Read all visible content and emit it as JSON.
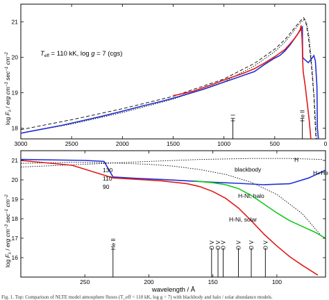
{
  "caption": "Fig. 1. Top: Comparison of NLTE model atmosphere fluxes (T_eff = 110 kK, log g = 7) with blackbody and halo / solar abundance models.",
  "chart_data": [
    {
      "type": "line",
      "panel": "top",
      "annotation": "T_eff = 110 kK, log g = 7 (cgs)",
      "annotation_parts": {
        "pre": "T",
        "sub": "eff",
        "mid": " = 110 kK, log ",
        "g": "g",
        "post": " = 7 (cgs)"
      },
      "ylabel": "log F_λ / erg cm⁻³ sec⁻¹ cm⁻²",
      "ylabel_parts": {
        "a": "log ",
        "F": "F",
        "lam": "λ",
        "b": " / ",
        "unit": "erg cm",
        "e1": "−3",
        "c": " sec",
        "e2": "−1",
        "d": " cm",
        "e3": "−2"
      },
      "xlim": [
        3000,
        0
      ],
      "ylim": [
        17.7,
        21.5
      ],
      "x_ticks": [
        3000,
        2500,
        2000,
        1500,
        1000,
        500,
        0
      ],
      "y_ticks": [
        18,
        19,
        20,
        21
      ],
      "line_ids": [
        {
          "label": "H I",
          "x": 912
        },
        {
          "label": "He II",
          "x": 228
        }
      ],
      "series": [
        {
          "color": "#1f2fd6",
          "points": [
            [
              3000,
              17.86
            ],
            [
              2800,
              17.97
            ],
            [
              2600,
              18.08
            ],
            [
              2400,
              18.21
            ],
            [
              2200,
              18.34
            ],
            [
              2000,
              18.48
            ],
            [
              1800,
              18.63
            ],
            [
              1600,
              18.77
            ],
            [
              1400,
              18.93
            ],
            [
              1200,
              19.1
            ],
            [
              1000,
              19.3
            ],
            [
              900,
              19.4
            ],
            [
              800,
              19.5
            ],
            [
              700,
              19.6
            ],
            [
              600,
              19.8
            ],
            [
              500,
              19.98
            ],
            [
              450,
              20.05
            ],
            [
              400,
              20.18
            ],
            [
              350,
              20.35
            ],
            [
              300,
              20.55
            ],
            [
              260,
              20.72
            ],
            [
              235,
              20.82
            ],
            [
              228,
              20.85
            ],
            [
              225,
              20.0
            ],
            [
              210,
              19.95
            ],
            [
              190,
              19.9
            ],
            [
              170,
              19.85
            ],
            [
              140,
              19.95
            ],
            [
              115,
              20.05
            ],
            [
              100,
              19.9
            ],
            [
              85,
              19.2
            ],
            [
              80,
              18.0
            ],
            [
              70,
              17.7
            ]
          ]
        },
        {
          "color": "#e01818",
          "points": [
            [
              1500,
              18.92
            ],
            [
              1400,
              18.98
            ],
            [
              1300,
              19.05
            ],
            [
              1200,
              19.15
            ],
            [
              1100,
              19.25
            ],
            [
              1000,
              19.36
            ],
            [
              900,
              19.46
            ],
            [
              800,
              19.56
            ],
            [
              700,
              19.68
            ],
            [
              600,
              19.84
            ],
            [
              500,
              20.02
            ],
            [
              400,
              20.22
            ],
            [
              350,
              20.38
            ],
            [
              300,
              20.55
            ],
            [
              270,
              20.68
            ],
            [
              250,
              20.78
            ],
            [
              240,
              20.9
            ],
            [
              232,
              20.55
            ],
            [
              228,
              20.3
            ],
            [
              225,
              19.9
            ],
            [
              220,
              19.6
            ],
            [
              200,
              19.2
            ],
            [
              180,
              18.7
            ],
            [
              160,
              18.2
            ],
            [
              150,
              17.9
            ],
            [
              145,
              17.7
            ]
          ]
        }
      ],
      "blackbody_curves": [
        {
          "dash": "long",
          "points": [
            [
              3000,
              17.96
            ],
            [
              2500,
              18.24
            ],
            [
              2000,
              18.55
            ],
            [
              1500,
              18.9
            ],
            [
              1000,
              19.39
            ],
            [
              700,
              19.83
            ],
            [
              500,
              20.23
            ],
            [
              400,
              20.5
            ],
            [
              300,
              20.85
            ],
            [
              250,
              21.02
            ],
            [
              215,
              21.12
            ],
            [
              195,
              21.0
            ],
            [
              170,
              20.6
            ],
            [
              140,
              19.8
            ],
            [
              115,
              18.9
            ],
            [
              95,
              17.7
            ]
          ]
        },
        {
          "dash": "short",
          "points": [
            [
              3000,
              17.86
            ],
            [
              2500,
              18.12
            ],
            [
              2000,
              18.44
            ],
            [
              1500,
              18.82
            ],
            [
              1000,
              19.31
            ],
            [
              700,
              19.76
            ],
            [
              500,
              20.16
            ],
            [
              400,
              20.43
            ],
            [
              300,
              20.79
            ],
            [
              250,
              20.97
            ],
            [
              205,
              21.08
            ],
            [
              185,
              20.95
            ],
            [
              160,
              20.55
            ],
            [
              130,
              19.6
            ],
            [
              105,
              18.6
            ],
            [
              88,
              17.7
            ]
          ]
        }
      ]
    },
    {
      "type": "line",
      "panel": "bottom",
      "xlabel": "wavelength / Å",
      "ylabel": "log F_λ / erg cm⁻³ sec⁻¹ cm⁻²",
      "xlim": [
        300,
        62
      ],
      "ylim": [
        15.0,
        21.5
      ],
      "x_ticks": [
        250,
        200,
        150,
        100
      ],
      "y_ticks": [
        16,
        17,
        18,
        19,
        20,
        21
      ],
      "blackbody_temperatures": [
        "130",
        "110",
        "90"
      ],
      "line_ids": [
        {
          "label": "He II",
          "x": 228
        },
        {
          "label": "O V",
          "x": 151
        },
        {
          "label": "O V",
          "x": 146
        },
        {
          "label": "O V",
          "x": 142
        },
        {
          "label": "O V",
          "x": 130
        },
        {
          "label": "O V",
          "x": 120
        },
        {
          "label": "O V",
          "x": 109
        }
      ],
      "series": [
        {
          "name": "blackbody",
          "color": "#000000",
          "dash": "short",
          "points": [
            [
              300,
              20.85
            ],
            [
              260,
              20.9
            ],
            [
              228,
              20.87
            ],
            [
              200,
              20.8
            ],
            [
              180,
              20.7
            ],
            [
              160,
              20.53
            ],
            [
              140,
              20.28
            ],
            [
              120,
              19.88
            ],
            [
              100,
              19.25
            ],
            [
              80,
              18.25
            ],
            [
              65,
              17.1
            ]
          ]
        },
        {
          "name": "H",
          "color": "#000000",
          "dash": "short",
          "points": [
            [
              300,
              20.66
            ],
            [
              250,
              20.8
            ],
            [
              200,
              20.95
            ],
            [
              160,
              21.05
            ],
            [
              120,
              21.1
            ],
            [
              90,
              21.1
            ],
            [
              65,
              21.05
            ]
          ]
        },
        {
          "name": "H+He",
          "color": "#1f2fd6",
          "points": [
            [
              300,
              21.05
            ],
            [
              250,
              21.0
            ],
            [
              235,
              20.95
            ],
            [
              228,
              20.15
            ],
            [
              210,
              20.08
            ],
            [
              190,
              20.02
            ],
            [
              170,
              19.95
            ],
            [
              150,
              19.88
            ],
            [
              130,
              19.82
            ],
            [
              110,
              19.75
            ],
            [
              90,
              19.8
            ],
            [
              75,
              20.1
            ],
            [
              62,
              20.5
            ]
          ]
        },
        {
          "name": "H-Ni, halo",
          "color": "#10c818",
          "points": [
            [
              165,
              19.95
            ],
            [
              150,
              19.85
            ],
            [
              140,
              19.75
            ],
            [
              130,
              19.55
            ],
            [
              120,
              19.2
            ],
            [
              110,
              18.75
            ],
            [
              100,
              18.3
            ],
            [
              90,
              17.9
            ],
            [
              80,
              17.6
            ],
            [
              70,
              17.3
            ],
            [
              62,
              17.0
            ]
          ]
        },
        {
          "name": "H-Ni, solar",
          "color": "#e01818",
          "points": [
            [
              300,
              21.0
            ],
            [
              260,
              20.75
            ],
            [
              228,
              20.1
            ],
            [
              210,
              20.03
            ],
            [
              190,
              19.95
            ],
            [
              170,
              19.8
            ],
            [
              160,
              19.65
            ],
            [
              150,
              19.4
            ],
            [
              140,
              19.05
            ],
            [
              130,
              18.55
            ],
            [
              120,
              17.9
            ],
            [
              110,
              17.2
            ],
            [
              100,
              16.6
            ],
            [
              90,
              16.05
            ],
            [
              80,
              15.6
            ],
            [
              68,
              15.1
            ]
          ]
        }
      ],
      "labels": [
        "H",
        "H+He",
        "blackbody",
        "H-Ni, halo",
        "H-Ni, solar"
      ]
    }
  ]
}
